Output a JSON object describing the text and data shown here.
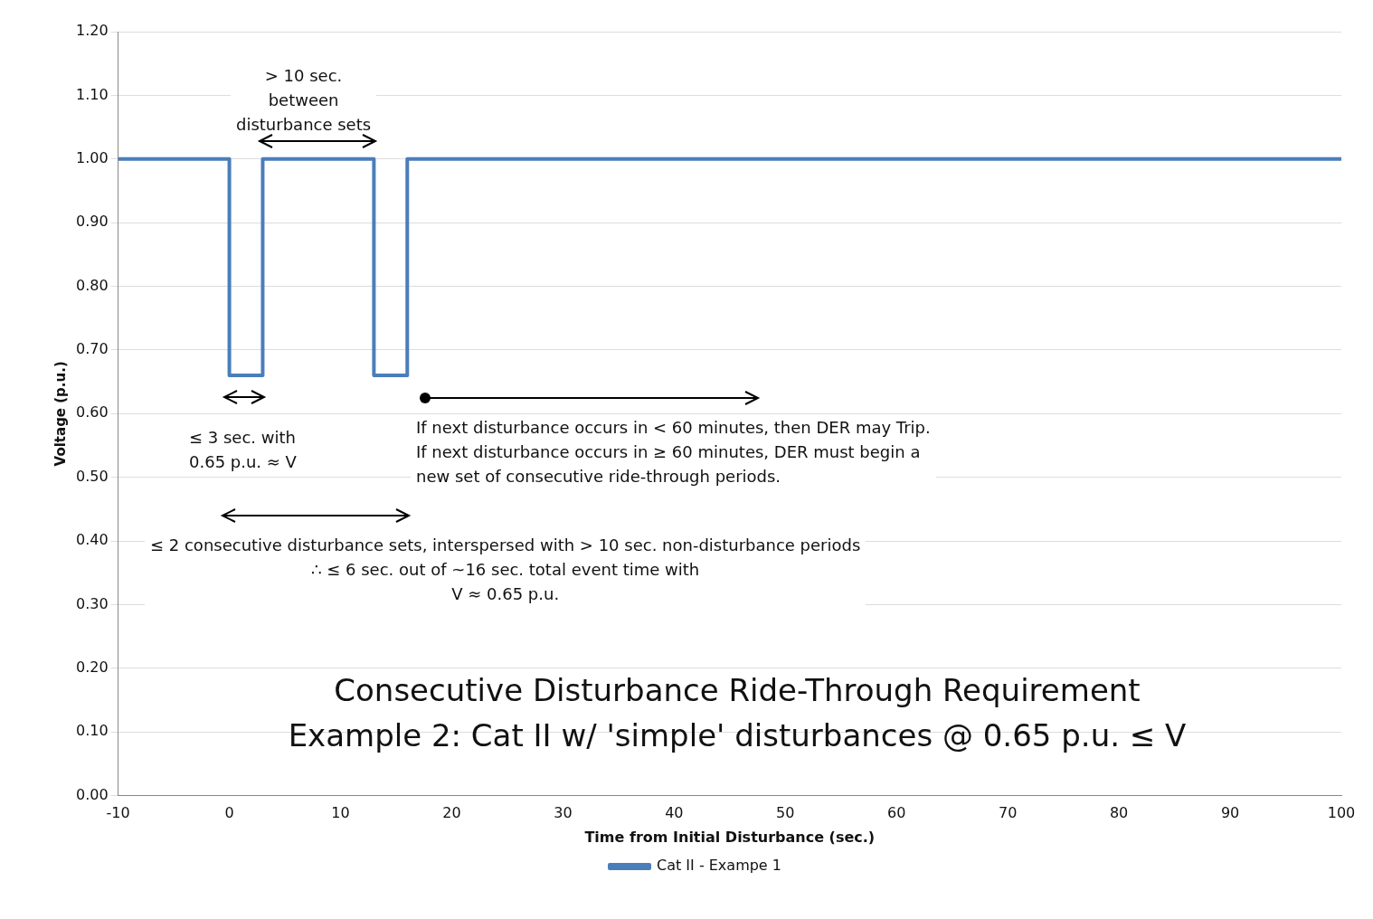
{
  "chart_data": {
    "type": "line",
    "title": "Consecutive Disturbance Ride-Through Requirement",
    "subtitle": "Example 2: Cat II w/ 'simple' disturbances @ 0.65 p.u. ≤ V",
    "xlabel": "Time from Initial Disturbance (sec.)",
    "ylabel": "Voltage (p.u.)",
    "x": [
      -10,
      0,
      0,
      3,
      3,
      13,
      13,
      16,
      16,
      100
    ],
    "series": [
      {
        "name": "Cat II - Exampe 1",
        "color": "#4a7ebb",
        "values": [
          1.0,
          1.0,
          0.66,
          0.66,
          1.0,
          1.0,
          0.66,
          0.66,
          1.0,
          1.0
        ]
      }
    ],
    "xlim": [
      -10,
      100
    ],
    "xticks": [
      -10,
      0,
      10,
      20,
      30,
      40,
      50,
      60,
      70,
      80,
      90,
      100
    ],
    "ylim": [
      0,
      1.2
    ],
    "yticks": [
      {
        "value": 0,
        "label": "0.00"
      },
      {
        "value": 0.1,
        "label": "0.10"
      },
      {
        "value": 0.2,
        "label": "0.20"
      },
      {
        "value": 0.3,
        "label": "0.30"
      },
      {
        "value": 0.4,
        "label": "0.40"
      },
      {
        "value": 0.5,
        "label": "0.50"
      },
      {
        "value": 0.6,
        "label": "0.60"
      },
      {
        "value": 0.7,
        "label": "0.70"
      },
      {
        "value": 0.8,
        "label": "0.80"
      },
      {
        "value": 0.9,
        "label": "0.90"
      },
      {
        "value": 1.0,
        "label": "1.00"
      },
      {
        "value": 1.1,
        "label": "1.10"
      },
      {
        "value": 1.2,
        "label": "1.20"
      }
    ],
    "annotations": [
      "> 10 sec.\nbetween\ndisturbance sets",
      "≤ 3 sec. with\n0.65 p.u. ≈ V",
      "If next disturbance occurs in < 60 minutes, then DER may Trip.\nIf next disturbance occurs in ≥ 60 minutes, DER must begin a\nnew set of consecutive ride-through periods.",
      "≤ 2 consecutive disturbance sets, interspersed with > 10 sec. non-disturbance periods\n∴ ≤ 6 sec. out of ~16 sec. total event time with\nV ≈ 0.65 p.u."
    ],
    "grid": "y",
    "legend": "bottom",
    "marker": "none"
  }
}
